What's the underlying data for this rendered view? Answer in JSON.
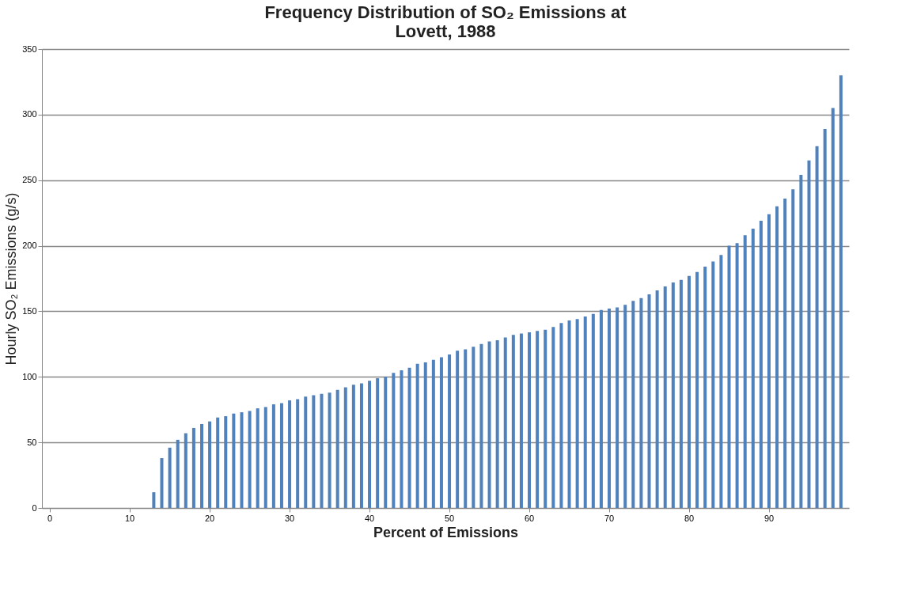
{
  "chart_data": {
    "type": "bar",
    "title": "Frequency Distribution of SO₂ Emissions at\nLovett, 1988",
    "xlabel": "Percent of Emissions",
    "ylabel": "Hourly SO₂ Emissions (g/s)",
    "categories": [
      "0",
      null,
      null,
      null,
      null,
      null,
      null,
      null,
      null,
      null,
      "10",
      null,
      null,
      null,
      null,
      null,
      null,
      null,
      null,
      null,
      "20",
      null,
      null,
      null,
      null,
      null,
      null,
      null,
      null,
      null,
      "30",
      null,
      null,
      null,
      null,
      null,
      null,
      null,
      null,
      null,
      "40",
      null,
      null,
      null,
      null,
      null,
      null,
      null,
      null,
      null,
      "50",
      null,
      null,
      null,
      null,
      null,
      null,
      null,
      null,
      null,
      "60",
      null,
      null,
      null,
      null,
      null,
      null,
      null,
      null,
      null,
      "70",
      null,
      null,
      null,
      null,
      null,
      null,
      null,
      null,
      null,
      "80",
      null,
      null,
      null,
      null,
      null,
      null,
      null,
      null,
      null,
      "90",
      null,
      null,
      null,
      null,
      null,
      null,
      null,
      null,
      null
    ],
    "values": [
      0,
      0,
      0,
      0,
      0,
      0,
      0,
      0,
      0,
      0,
      0,
      0,
      0,
      12,
      38,
      46,
      52,
      57,
      61,
      64,
      66,
      69,
      70,
      72,
      73,
      74,
      76,
      77,
      79,
      80,
      82,
      83,
      85,
      86,
      87,
      88,
      90,
      92,
      94,
      95,
      97,
      99,
      100,
      103,
      105,
      107,
      110,
      111,
      113,
      115,
      117,
      120,
      121,
      123,
      125,
      127,
      128,
      130,
      132,
      133,
      134,
      135,
      136,
      138,
      141,
      143,
      144,
      146,
      148,
      151,
      152,
      153,
      155,
      158,
      160,
      163,
      166,
      169,
      172,
      174,
      177,
      180,
      184,
      188,
      193,
      200,
      202,
      208,
      213,
      219,
      224,
      230,
      236,
      243,
      254,
      265,
      276,
      289,
      305,
      330
    ],
    "color": "#4f81bd",
    "ylim": [
      0,
      350
    ],
    "yticks": [
      0,
      50,
      100,
      150,
      200,
      250,
      300,
      350
    ],
    "grid": "y"
  }
}
